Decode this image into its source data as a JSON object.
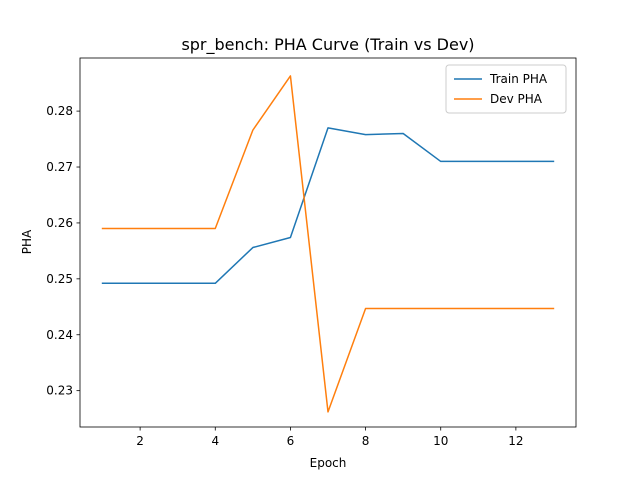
{
  "chart_data": {
    "type": "line",
    "title": "spr_bench: PHA Curve (Train vs Dev)",
    "xlabel": "Epoch",
    "ylabel": "PHA",
    "xlim": [
      0.4,
      13.6
    ],
    "ylim": [
      0.2235,
      0.2895
    ],
    "xticks": [
      2,
      4,
      6,
      8,
      10,
      12
    ],
    "yticks": [
      0.23,
      0.24,
      0.25,
      0.26,
      0.27,
      0.28
    ],
    "xtick_labels": [
      "2",
      "4",
      "6",
      "8",
      "10",
      "12"
    ],
    "ytick_labels": [
      "0.23",
      "0.24",
      "0.25",
      "0.26",
      "0.27",
      "0.28"
    ],
    "grid": false,
    "legend": "top-right",
    "x": [
      1,
      2,
      3,
      4,
      5,
      6,
      7,
      8,
      9,
      10,
      11,
      12,
      13
    ],
    "series": [
      {
        "name": "Train PHA",
        "color": "#1f77b4",
        "values": [
          0.2492,
          0.2492,
          0.2492,
          0.2492,
          0.2556,
          0.2574,
          0.277,
          0.2758,
          0.276,
          0.271,
          0.271,
          0.271,
          0.271
        ]
      },
      {
        "name": "Dev PHA",
        "color": "#ff7f0e",
        "values": [
          0.259,
          0.259,
          0.259,
          0.259,
          0.2766,
          0.2863,
          0.2262,
          0.2447,
          0.2447,
          0.2447,
          0.2447,
          0.2447,
          0.2447
        ]
      }
    ]
  }
}
